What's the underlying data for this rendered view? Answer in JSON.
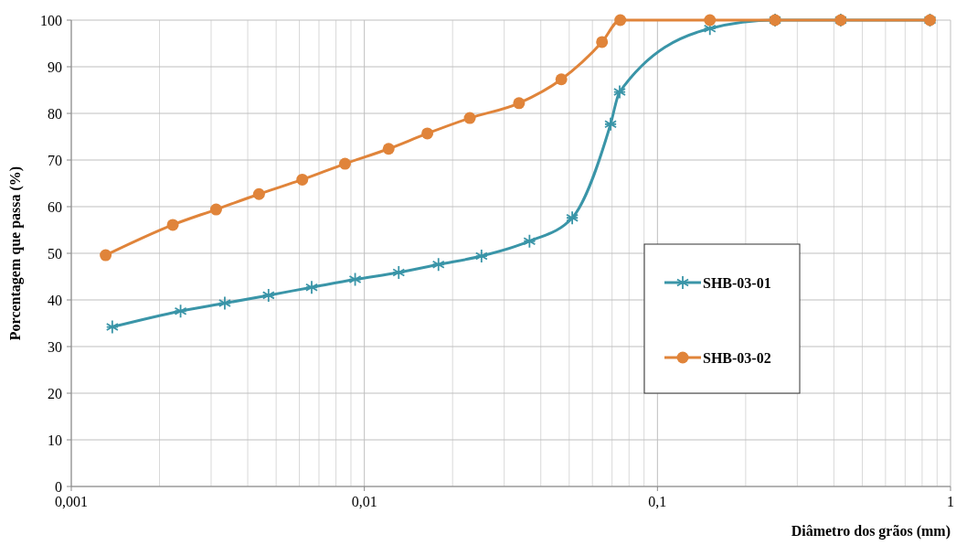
{
  "chart_data": {
    "type": "line",
    "xlabel": "Diâmetro dos grãos (mm)",
    "ylabel": "Porcentagem que passa (%)",
    "log": "x",
    "xlim": [
      0.001,
      1
    ],
    "xticks": [
      {
        "value": 0.001,
        "label": "0,001"
      },
      {
        "value": 0.01,
        "label": "0,01"
      },
      {
        "value": 0.1,
        "label": "0,1"
      },
      1
    ],
    "ylim": [
      0,
      100
    ],
    "yticks": [
      0,
      10,
      20,
      30,
      40,
      50,
      60,
      70,
      80,
      90,
      100
    ],
    "grid": true,
    "legend": "right",
    "series": [
      {
        "name": "SHB-03-01",
        "color": "#3a95a8",
        "marker": "cross",
        "x": [
          0.00138,
          0.00236,
          0.00334,
          0.00471,
          0.00661,
          0.0093,
          0.0131,
          0.0179,
          0.0251,
          0.0366,
          0.0512,
          0.0692,
          0.0743,
          0.151,
          0.252,
          0.422,
          0.851
        ],
        "values": [
          34.2,
          37.6,
          39.3,
          41.0,
          42.7,
          44.4,
          45.9,
          47.6,
          49.4,
          52.6,
          57.6,
          77.7,
          84.6,
          98.2,
          100,
          100,
          100
        ]
      },
      {
        "name": "SHB-03-02",
        "color": "#e0843a",
        "marker": "circle",
        "x": [
          0.00131,
          0.00222,
          0.00312,
          0.00437,
          0.00614,
          0.00859,
          0.0121,
          0.0164,
          0.0229,
          0.0337,
          0.047,
          0.0647,
          0.0747,
          0.151,
          0.252,
          0.422,
          0.851
        ],
        "values": [
          49.6,
          56.1,
          59.4,
          62.7,
          65.8,
          69.2,
          72.4,
          75.7,
          79.0,
          82.2,
          87.3,
          95.3,
          100,
          100,
          100,
          100,
          100
        ]
      }
    ]
  }
}
